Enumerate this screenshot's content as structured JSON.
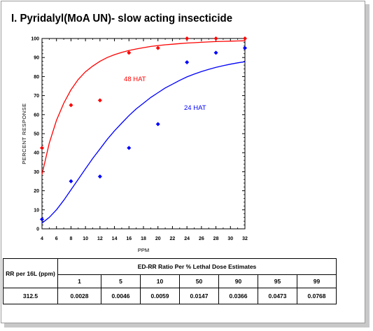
{
  "slide": {
    "title": "I. Pyridalyl(MoA UN)- slow acting insecticide"
  },
  "chart_data": {
    "type": "scatter",
    "title": "",
    "xlabel": "PPM",
    "ylabel": "PERCENT RESPONSE",
    "xlim": [
      4,
      32
    ],
    "ylim": [
      0,
      100
    ],
    "xticks": [
      4,
      6,
      8,
      10,
      12,
      14,
      16,
      18,
      20,
      22,
      24,
      26,
      28,
      30,
      32
    ],
    "yticks": [
      0,
      10,
      20,
      30,
      40,
      50,
      60,
      70,
      80,
      90,
      100
    ],
    "grid": false,
    "series": [
      {
        "name": "48 HAT",
        "color": "#ff0000",
        "x": [
          4,
          8,
          12,
          16,
          20,
          24,
          28,
          32
        ],
        "y": [
          42.5,
          65,
          67.5,
          92.5,
          95,
          100,
          100,
          100
        ],
        "fit_x": [
          4,
          5,
          6,
          7,
          8,
          9,
          10,
          11,
          12,
          13,
          14,
          15,
          16,
          17,
          18,
          19,
          20,
          21,
          22,
          23,
          24,
          25,
          26,
          27,
          28,
          29,
          30,
          31,
          32
        ],
        "fit_y": [
          28.5,
          45,
          57,
          66,
          73,
          78.5,
          82.5,
          85.5,
          88,
          90,
          91.5,
          92.7,
          93.7,
          94.5,
          95.2,
          95.8,
          96.3,
          96.7,
          97,
          97.3,
          97.6,
          97.8,
          98,
          98.2,
          98.4,
          98.5,
          98.6,
          98.7,
          98.8
        ]
      },
      {
        "name": "24 HAT",
        "color": "#0000ff",
        "x": [
          4,
          8,
          12,
          16,
          20,
          24,
          28,
          32
        ],
        "y": [
          5,
          25,
          27.5,
          42.5,
          55,
          87.5,
          92.5,
          95
        ],
        "fit_x": [
          4,
          5,
          6,
          7,
          8,
          9,
          10,
          11,
          12,
          13,
          14,
          15,
          16,
          17,
          18,
          19,
          20,
          21,
          22,
          23,
          24,
          25,
          26,
          27,
          28,
          29,
          30,
          31,
          32
        ],
        "fit_y": [
          3,
          6,
          10,
          15,
          20.5,
          26,
          31.5,
          37,
          42,
          47,
          51.5,
          55.5,
          59.5,
          63,
          66,
          69,
          71.5,
          74,
          76,
          78,
          79.8,
          81.3,
          82.6,
          83.8,
          84.8,
          85.7,
          86.5,
          87.2,
          87.8
        ]
      }
    ],
    "annotations": [
      {
        "text": "48 HAT",
        "x": 15.3,
        "y": 77.5,
        "color": "#ff0000"
      },
      {
        "text": "24 HAT",
        "x": 23.6,
        "y": 62.5,
        "color": "#0000ff"
      }
    ]
  },
  "table": {
    "rr_header": "RR per 16L (ppm)",
    "group_header": "ED-RR  Ratio Per % Lethal Dose Estimates",
    "columns": [
      "1",
      "5",
      "10",
      "50",
      "90",
      "95",
      "99"
    ],
    "rr_value": "312.5",
    "values": [
      "0.0028",
      "0.0046",
      "0.0059",
      "0.0147",
      "0.0366",
      "0.0473",
      "0.0768"
    ]
  }
}
